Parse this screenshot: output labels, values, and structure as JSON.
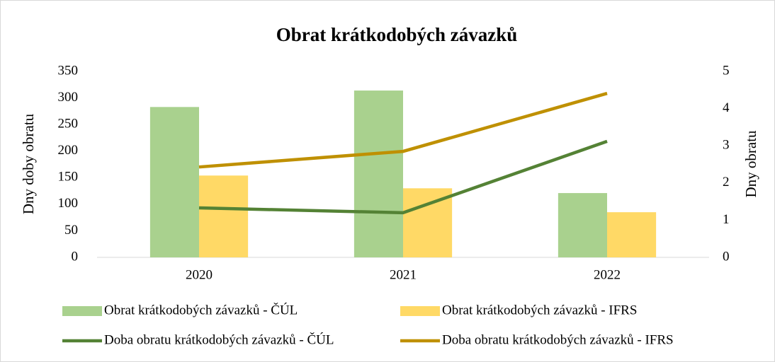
{
  "chart_data": {
    "type": "combo",
    "title": "Obrat krátkodobých závazků",
    "categories": [
      "2020",
      "2021",
      "2022"
    ],
    "ylabel": "Dny doby obratu",
    "y2label": "Dny obratu",
    "ylim": [
      0,
      350
    ],
    "yticks": [
      0,
      50,
      100,
      150,
      200,
      250,
      300,
      350
    ],
    "y2lim": [
      0,
      5
    ],
    "y2ticks": [
      0,
      1,
      2,
      3,
      4,
      5
    ],
    "grid": false,
    "legend": "bottom",
    "series": [
      {
        "name": "Obrat krátkodobých závazků - ČÚL",
        "type": "bar",
        "color": "#a9d18e",
        "values": [
          283,
          314,
          121
        ]
      },
      {
        "name": "Obrat krátkodobých závazků - IFRS",
        "type": "bar",
        "color": "#ffd966",
        "values": [
          154,
          130,
          85
        ]
      },
      {
        "name": "Doba obratu krátkodobých závazků - ČÚL",
        "type": "line",
        "axis": "y2",
        "color": "#548235",
        "values": [
          1.33,
          1.2,
          3.12
        ]
      },
      {
        "name": "Doba obratu krátkodobých závazků - IFRS",
        "type": "line",
        "axis": "y2",
        "color": "#bf9000",
        "values": [
          2.43,
          2.85,
          4.41
        ]
      }
    ]
  }
}
